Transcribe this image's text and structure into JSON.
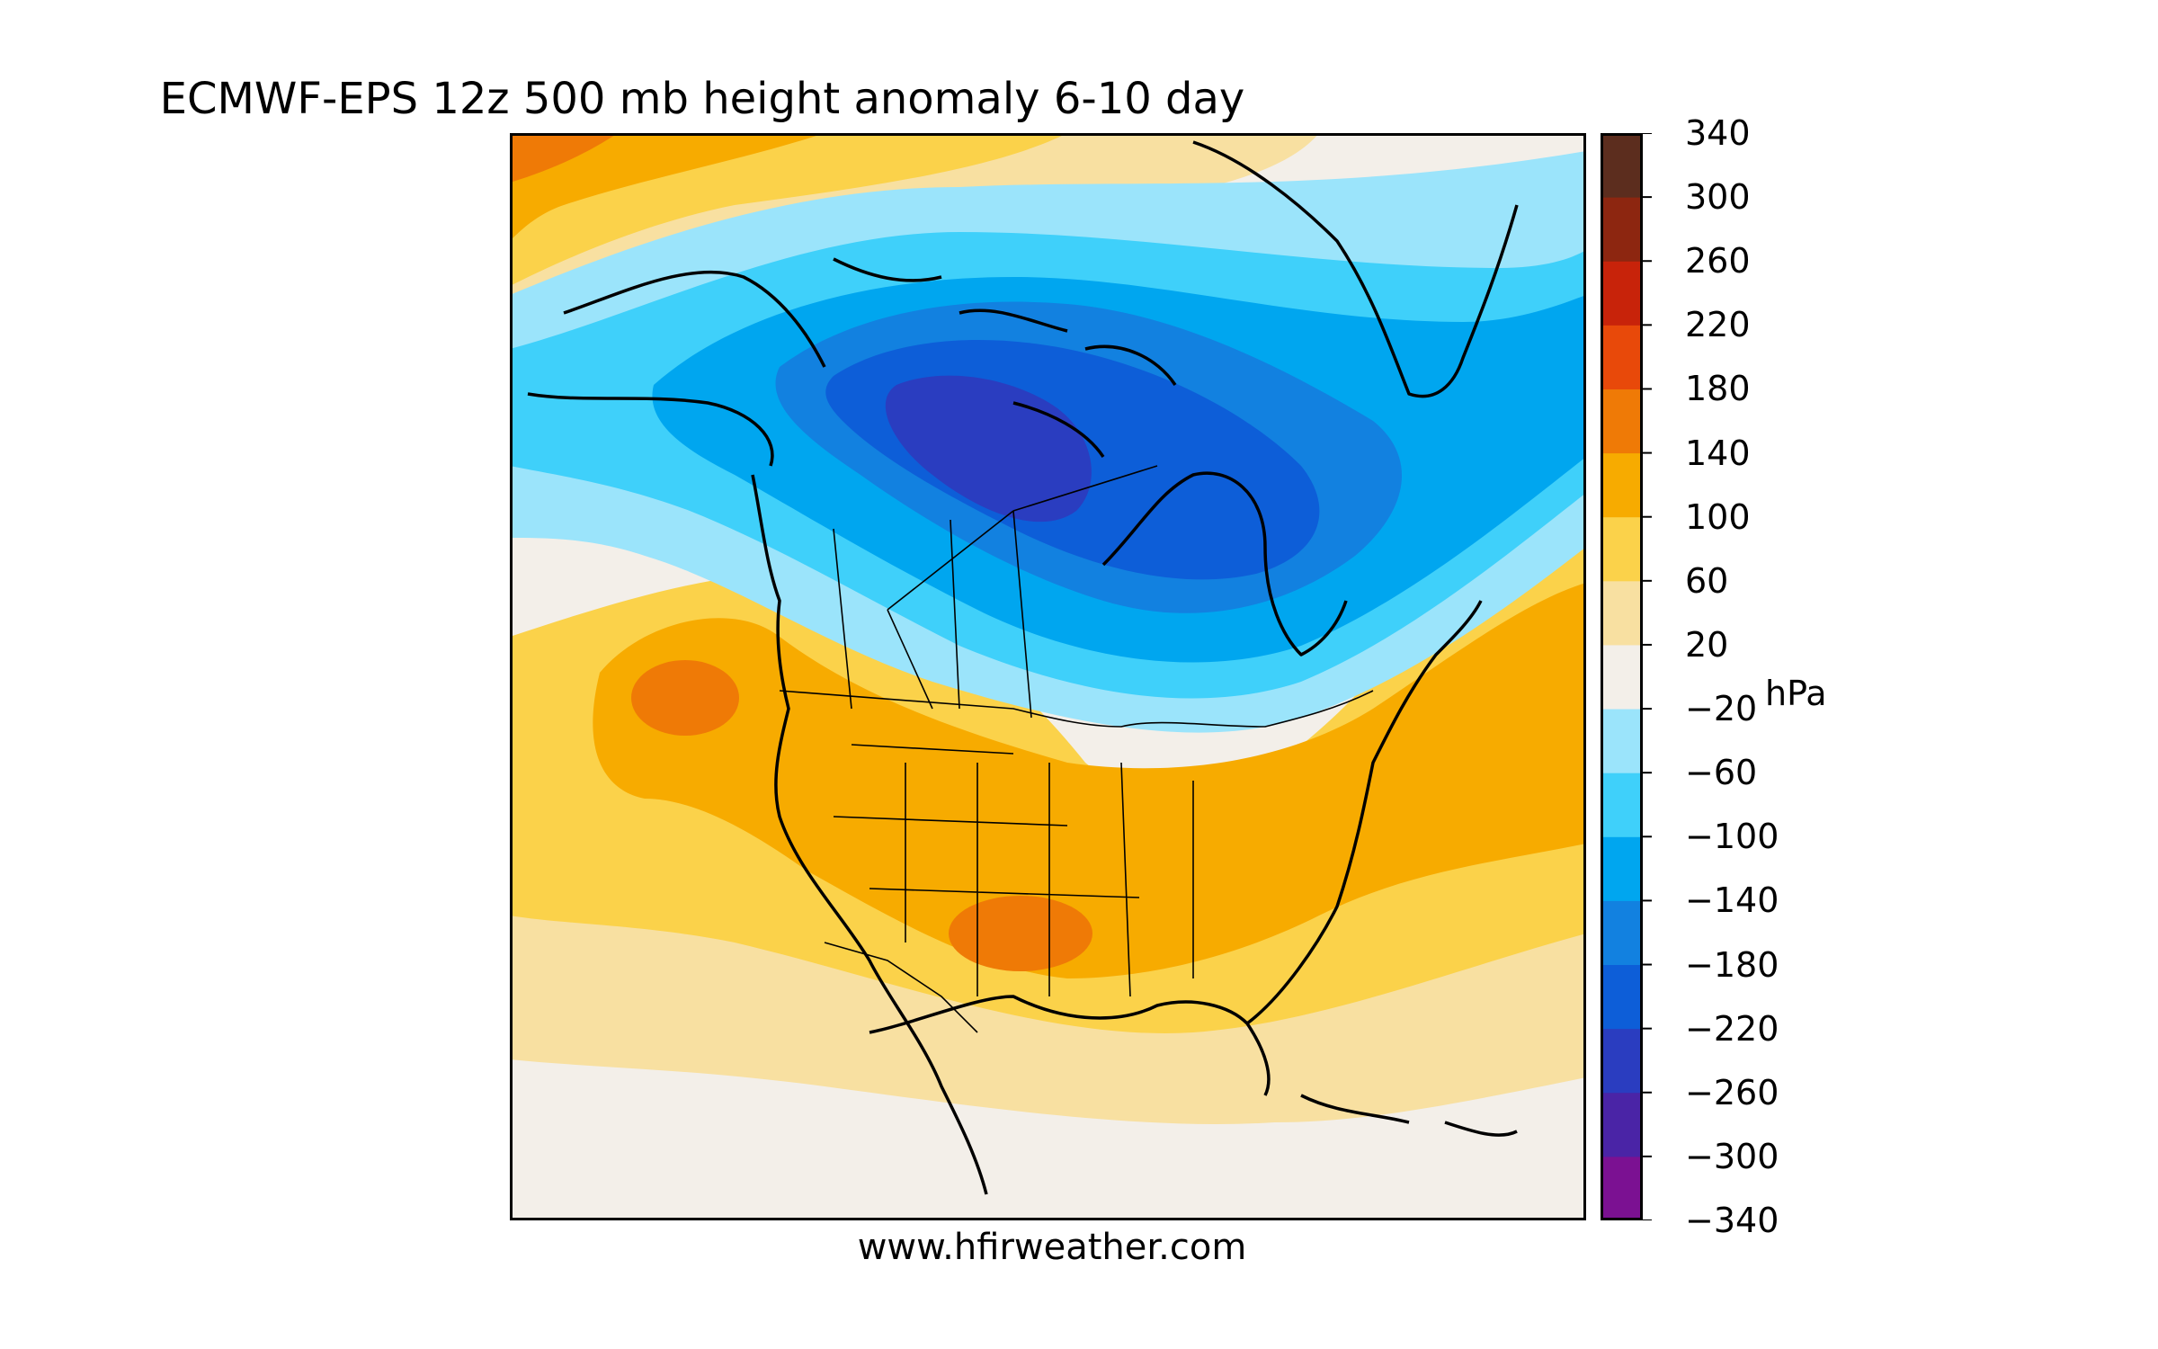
{
  "title": "ECMWF-EPS 12z 500 mb height anomaly 6-10 day",
  "footer": "www.hfirweather.com",
  "colorbar": {
    "unit": "hPa",
    "ticks": [
      "340",
      "300",
      "260",
      "220",
      "180",
      "140",
      "100",
      "60",
      "20",
      "−20",
      "−60",
      "−100",
      "−140",
      "−180",
      "−220",
      "−260",
      "−300",
      "−340"
    ],
    "colors": [
      "#7b1192",
      "#4a24a6",
      "#2a3dc0",
      "#0d5ed8",
      "#1281e0",
      "#00a6ef",
      "#3fd0fa",
      "#9be4fb",
      "#f3efe9",
      "#f8e0a1",
      "#fbd24a",
      "#f7ab00",
      "#ef7a06",
      "#e8490a",
      "#c8230a",
      "#8d2610",
      "#5c2d1e"
    ]
  },
  "map": {
    "region": "North America",
    "land_outline_color": "#000000",
    "anomaly_centers": [
      {
        "label": "negative center",
        "value_range": "−260 to −220",
        "location": "Canadian Arctic / Nunavut"
      },
      {
        "label": "positive center",
        "value_range": "140 to 180",
        "location": "Oklahoma / Texas"
      },
      {
        "label": "positive center",
        "value_range": "140 to 180",
        "location": "NE Pacific off Washington"
      }
    ]
  }
}
